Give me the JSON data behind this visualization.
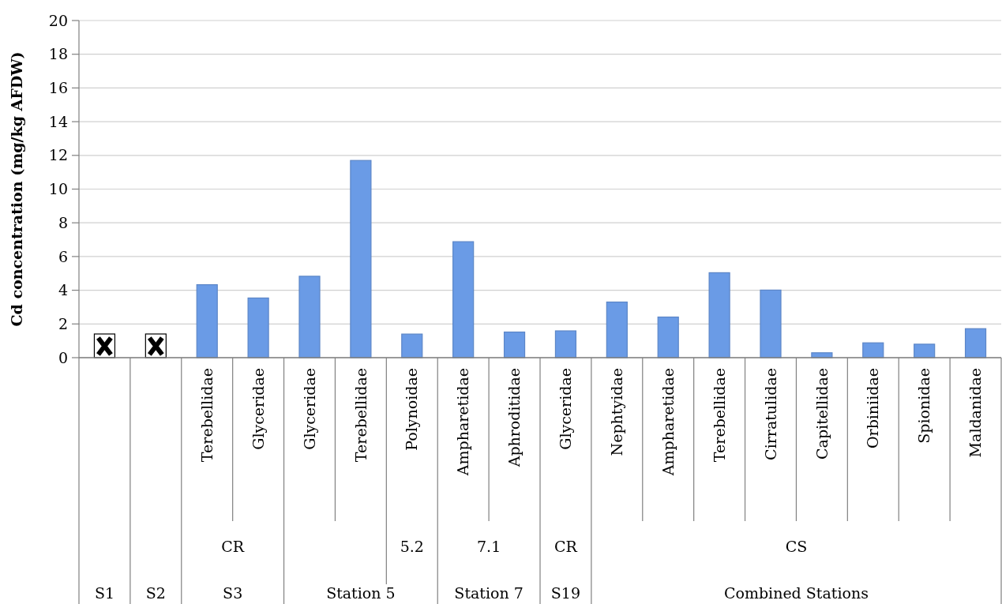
{
  "chart_data": {
    "type": "bar",
    "ylabel": "Cd concentration (mg/kg AFDW)",
    "categories": [
      null,
      null,
      "Terebellidae",
      "Glyceridae",
      "Glyceridae",
      "Terebellidae",
      "Polynoidae",
      "Ampharetidae",
      "Aphroditidae",
      "Glyceridae",
      "Nephtyidae",
      "Ampharetidae",
      "Terebellidae",
      "Cirratulidae",
      "Capitellidae",
      "Orbiniidae",
      "Spionidae",
      "Maldanidae"
    ],
    "values": [
      null,
      null,
      4.33,
      3.54,
      4.83,
      11.7,
      1.4,
      6.88,
      1.52,
      1.59,
      3.3,
      2.41,
      5.04,
      4.01,
      0.29,
      0.88,
      0.8,
      1.72
    ],
    "color": "#6a9be6",
    "ylim": [
      0,
      20
    ],
    "yticks": [
      0,
      2,
      4,
      6,
      8,
      10,
      12,
      14,
      16,
      18,
      20
    ],
    "grid": "y",
    "annotations": [
      "CR",
      "5.2",
      "7.1",
      "CR",
      "CS",
      "S1",
      "S2",
      "S3",
      "Station 5",
      "Station 7",
      "S19",
      "Combined Stations"
    ]
  }
}
